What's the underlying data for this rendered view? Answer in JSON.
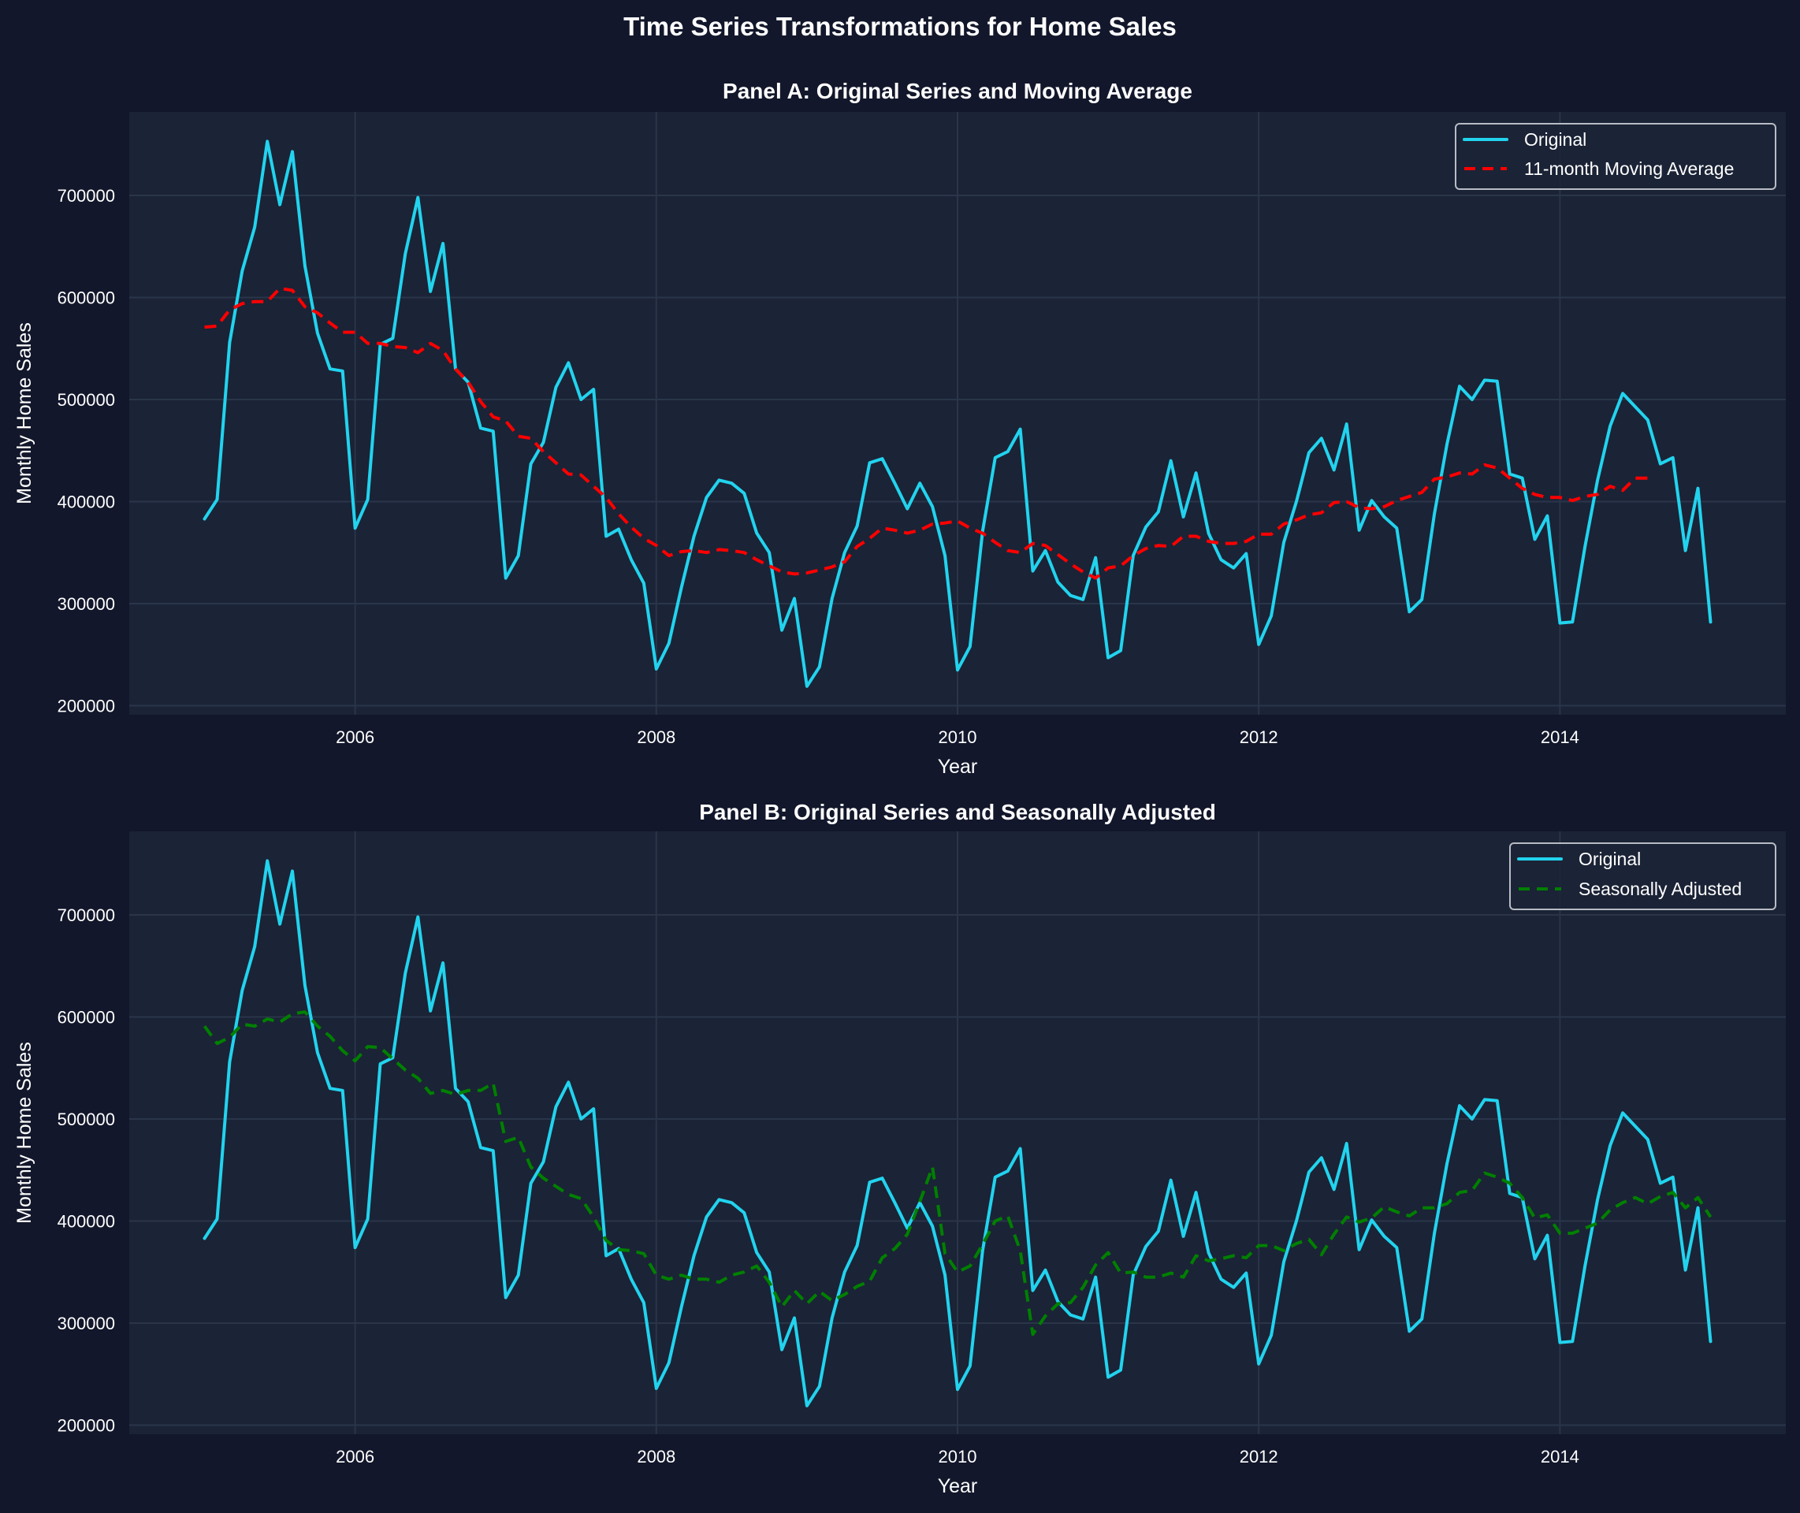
{
  "figure": {
    "title": "Time Series Transformations for Home Sales",
    "background": "#12172b",
    "panel_background": "#1b2336",
    "grid_color": "#2a3549"
  },
  "chart_data": [
    {
      "type": "line",
      "title": "Panel A: Original Series and Moving Average",
      "xlabel": "Year",
      "ylabel": "Monthly Home Sales",
      "xlim": [
        2004.5,
        2015.5
      ],
      "ylim": [
        191100,
        781900
      ],
      "xticks": [
        2006,
        2008,
        2010,
        2012,
        2014
      ],
      "xtick_labels": [
        "2006",
        "2008",
        "2010",
        "2012",
        "2014"
      ],
      "yticks": [
        200000,
        300000,
        400000,
        500000,
        600000,
        700000
      ],
      "ytick_labels": [
        "200000",
        "300000",
        "400000",
        "500000",
        "600000",
        "700000"
      ],
      "grid": true,
      "legend_position": "top-right",
      "x_start": "2005-01",
      "x_step": "monthly",
      "series": [
        {
          "name": "Original",
          "color": "#22d3ee",
          "style": "solid",
          "start_index": 0,
          "values": [
            383000,
            402000,
            556000,
            626000,
            669000,
            753000,
            691000,
            743000,
            631000,
            565000,
            530000,
            528000,
            374000,
            402000,
            554000,
            560000,
            643000,
            698000,
            606000,
            653000,
            530000,
            517000,
            472000,
            469000,
            325000,
            347000,
            437000,
            458000,
            512000,
            536000,
            500000,
            510000,
            366000,
            373000,
            343000,
            320000,
            236000,
            261000,
            316000,
            366000,
            404000,
            421000,
            418000,
            408000,
            369000,
            350000,
            274000,
            305000,
            219000,
            238000,
            305000,
            350000,
            376000,
            438000,
            442000,
            418000,
            393000,
            418000,
            395000,
            347000,
            235000,
            258000,
            371000,
            443000,
            449000,
            471000,
            332000,
            352000,
            321000,
            308000,
            304000,
            345000,
            247000,
            254000,
            347000,
            375000,
            390000,
            440000,
            385000,
            428000,
            369000,
            343000,
            335000,
            349000,
            260000,
            288000,
            360000,
            400000,
            448000,
            462000,
            431000,
            476000,
            372000,
            401000,
            385000,
            374000,
            292000,
            304000,
            388000,
            456000,
            513000,
            500000,
            519000,
            518000,
            427000,
            423000,
            363000,
            386000,
            281000,
            282000,
            356000,
            421000,
            474000,
            506000,
            493000,
            480000,
            437000,
            443000,
            352000,
            413000,
            282000
          ]
        },
        {
          "name": "11-month Moving Average",
          "color": "#ff0000",
          "style": "dashed",
          "start_index": 0,
          "values": [
            571000,
            572000,
            588000,
            594000,
            596000,
            596000,
            609000,
            607000,
            591000,
            585000,
            575000,
            566000,
            566000,
            555000,
            555000,
            552000,
            551000,
            546000,
            555000,
            548000,
            530000,
            517000,
            498000,
            483000,
            479000,
            464000,
            462000,
            449000,
            438000,
            427000,
            426000,
            415000,
            404000,
            388000,
            375000,
            364000,
            357000,
            347000,
            351000,
            352000,
            350000,
            353000,
            352000,
            350000,
            343000,
            337000,
            331000,
            329000,
            330000,
            333000,
            336000,
            341000,
            356000,
            364000,
            374000,
            372000,
            369000,
            372000,
            378000,
            379000,
            381000,
            374000,
            369000,
            360000,
            352000,
            350000,
            359000,
            357000,
            348000,
            339000,
            331000,
            325000,
            335000,
            337000,
            347000,
            354000,
            357000,
            356000,
            366000,
            366000,
            361000,
            359000,
            359000,
            361000,
            368000,
            368000,
            378000,
            382000,
            387000,
            389000,
            399000,
            400000,
            394000,
            393000,
            395000,
            401000,
            405000,
            409000,
            422000,
            424000,
            428000,
            427000,
            436000,
            433000,
            423000,
            413000,
            407000,
            404000,
            404000,
            401000,
            405000,
            407000,
            415000,
            411000,
            423000,
            423000
          ]
        }
      ]
    },
    {
      "type": "line",
      "title": "Panel B: Original Series and Seasonally Adjusted",
      "xlabel": "Year",
      "ylabel": "Monthly Home Sales",
      "xlim": [
        2004.5,
        2015.5
      ],
      "ylim": [
        191100,
        781900
      ],
      "xticks": [
        2006,
        2008,
        2010,
        2012,
        2014
      ],
      "xtick_labels": [
        "2006",
        "2008",
        "2010",
        "2012",
        "2014"
      ],
      "yticks": [
        200000,
        300000,
        400000,
        500000,
        600000,
        700000
      ],
      "ytick_labels": [
        "200000",
        "300000",
        "400000",
        "500000",
        "600000",
        "700000"
      ],
      "grid": true,
      "legend_position": "top-right",
      "x_start": "2005-01",
      "x_step": "monthly",
      "series": [
        {
          "name": "Original",
          "color": "#22d3ee",
          "style": "solid",
          "start_index": 0,
          "values": [
            383000,
            402000,
            556000,
            626000,
            669000,
            753000,
            691000,
            743000,
            631000,
            565000,
            530000,
            528000,
            374000,
            402000,
            554000,
            560000,
            643000,
            698000,
            606000,
            653000,
            530000,
            517000,
            472000,
            469000,
            325000,
            347000,
            437000,
            458000,
            512000,
            536000,
            500000,
            510000,
            366000,
            373000,
            343000,
            320000,
            236000,
            261000,
            316000,
            366000,
            404000,
            421000,
            418000,
            408000,
            369000,
            350000,
            274000,
            305000,
            219000,
            238000,
            305000,
            350000,
            376000,
            438000,
            442000,
            418000,
            393000,
            418000,
            395000,
            347000,
            235000,
            258000,
            371000,
            443000,
            449000,
            471000,
            332000,
            352000,
            321000,
            308000,
            304000,
            345000,
            247000,
            254000,
            347000,
            375000,
            390000,
            440000,
            385000,
            428000,
            369000,
            343000,
            335000,
            349000,
            260000,
            288000,
            360000,
            400000,
            448000,
            462000,
            431000,
            476000,
            372000,
            401000,
            385000,
            374000,
            292000,
            304000,
            388000,
            456000,
            513000,
            500000,
            519000,
            518000,
            427000,
            423000,
            363000,
            386000,
            281000,
            282000,
            356000,
            421000,
            474000,
            506000,
            493000,
            480000,
            437000,
            443000,
            352000,
            413000,
            282000
          ]
        },
        {
          "name": "Seasonally Adjusted",
          "color": "#008000",
          "style": "dashed",
          "start_index": 0,
          "values": [
            591000,
            574000,
            580000,
            593000,
            591000,
            598000,
            595000,
            603000,
            605000,
            591000,
            581000,
            567000,
            557000,
            571000,
            570000,
            559000,
            548000,
            540000,
            525000,
            528000,
            524000,
            528000,
            528000,
            535000,
            478000,
            482000,
            453000,
            442000,
            434000,
            426000,
            422000,
            404000,
            381000,
            372000,
            371000,
            368000,
            347000,
            343000,
            347000,
            343000,
            343000,
            340000,
            347000,
            350000,
            356000,
            340000,
            316000,
            332000,
            319000,
            331000,
            322000,
            328000,
            336000,
            341000,
            364000,
            373000,
            387000,
            419000,
            453000,
            368000,
            350000,
            356000,
            377000,
            400000,
            405000,
            371000,
            289000,
            307000,
            319000,
            320000,
            335000,
            357000,
            369000,
            349000,
            350000,
            345000,
            345000,
            349000,
            345000,
            366000,
            361000,
            363000,
            366000,
            364000,
            376000,
            376000,
            371000,
            378000,
            382000,
            367000,
            387000,
            404000,
            399000,
            403000,
            414000,
            409000,
            405000,
            413000,
            413000,
            417000,
            428000,
            430000,
            447000,
            443000,
            437000,
            423000,
            403000,
            406000,
            388000,
            388000,
            393000,
            398000,
            411000,
            418000,
            423000,
            417000,
            424000,
            428000,
            413000,
            423000,
            404000
          ]
        }
      ]
    }
  ]
}
